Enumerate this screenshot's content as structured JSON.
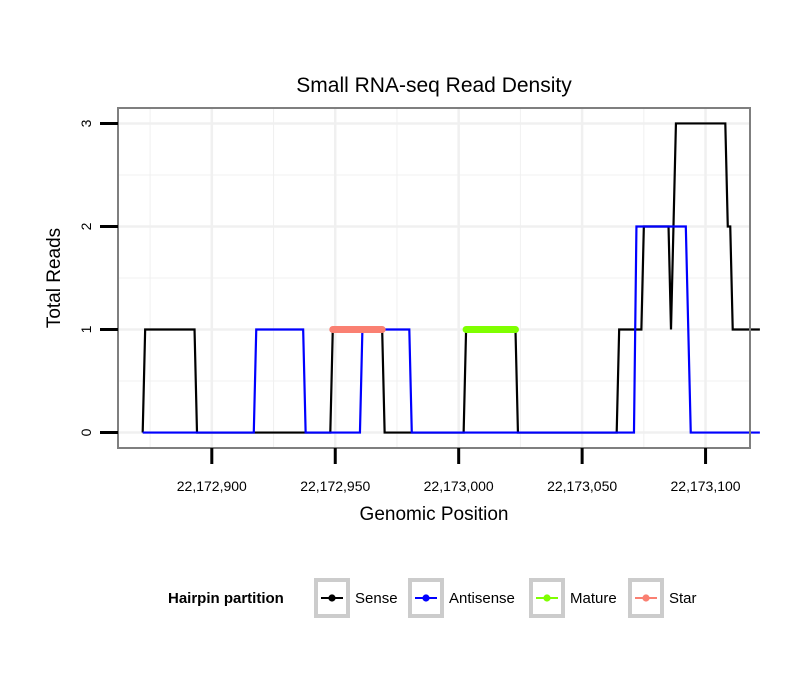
{
  "chart_data": {
    "type": "line",
    "title": "Small RNA-seq Read Density",
    "xlabel": "Genomic Position",
    "ylabel": "Total Reads",
    "xlim": [
      22172862,
      22173118
    ],
    "ylim": [
      -0.15,
      3.15
    ],
    "x_ticks": [
      22172900,
      22172950,
      22173000,
      22173050,
      22173100
    ],
    "x_tick_labels": [
      "22,172,900",
      "22,172,950",
      "22,173,000",
      "22,173,050",
      "22,173,100"
    ],
    "y_ticks": [
      0,
      1,
      2,
      3
    ],
    "y_tick_labels": [
      "0",
      "1",
      "2",
      "3"
    ],
    "grid": true,
    "legend": {
      "title": "Hairpin partition",
      "position": "bottom",
      "entries": [
        "Sense",
        "Antisense",
        "Mature",
        "Star"
      ]
    },
    "series": [
      {
        "name": "Sense",
        "color": "#000000",
        "x": [
          22172872,
          22172873,
          22172893,
          22172894,
          22172948,
          22172949,
          22172969,
          22172970,
          22173002,
          22173003,
          22173023,
          22173024,
          22173064,
          22173065,
          22173074,
          22173075,
          22173085,
          22173086,
          22173087,
          22173088,
          22173108,
          22173109,
          22173110,
          22173111,
          22173122
        ],
        "y": [
          0,
          1,
          1,
          0,
          0,
          1,
          1,
          0,
          0,
          1,
          1,
          0,
          0,
          1,
          1,
          2,
          2,
          1,
          2,
          3,
          3,
          2,
          2,
          1,
          1
        ]
      },
      {
        "name": "Antisense",
        "color": "#0000ff",
        "x": [
          22172872,
          22172917,
          22172918,
          22172937,
          22172938,
          22172960,
          22172961,
          22172980,
          22172981,
          22173071,
          22173072,
          22173092,
          22173093,
          22173094,
          22173122
        ],
        "y": [
          0,
          0,
          1,
          1,
          0,
          0,
          1,
          1,
          0,
          0,
          2,
          2,
          1,
          0,
          0
        ]
      },
      {
        "name": "Mature",
        "color": "#7fff00",
        "x": [
          22173003,
          22173023
        ],
        "y": [
          1,
          1
        ]
      },
      {
        "name": "Star",
        "color": "#fa8072",
        "x": [
          22172949,
          22172969
        ],
        "y": [
          1,
          1
        ]
      }
    ]
  }
}
